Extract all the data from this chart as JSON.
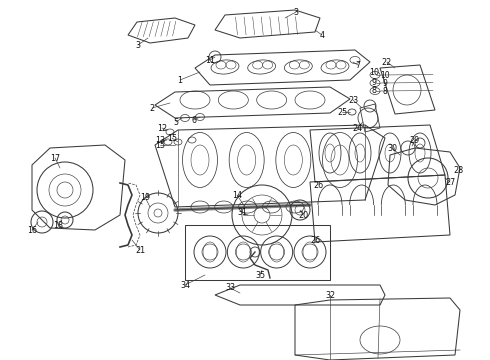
{
  "bg_color": "#ffffff",
  "line_color": "#3a3a3a",
  "label_color": "#111111",
  "figsize": [
    4.9,
    3.6
  ],
  "dpi": 100,
  "lw_main": 0.75,
  "lw_thin": 0.45,
  "label_fs": 5.8
}
